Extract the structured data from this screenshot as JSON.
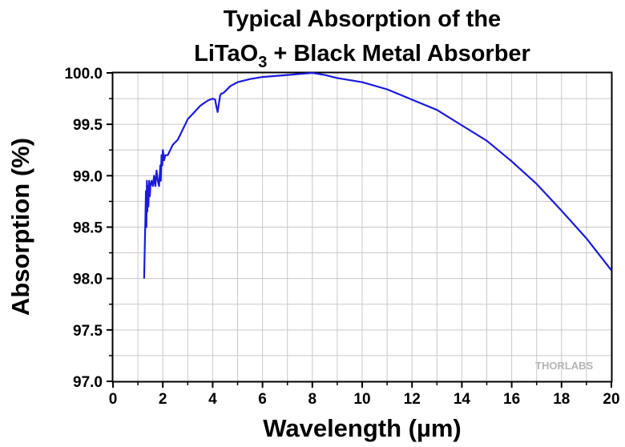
{
  "chart_data": {
    "type": "line",
    "title_line1": "Typical Absorption of the",
    "title_line2_pre": "LiTaO",
    "title_line2_sub": "3",
    "title_line2_post": " + Black Metal Absorber",
    "xlabel": "Wavelength (µm)",
    "ylabel": "Absorption (%)",
    "xlim": [
      0,
      20
    ],
    "ylim": [
      97.0,
      100.0
    ],
    "x_ticks": [
      "0",
      "2",
      "4",
      "6",
      "8",
      "10",
      "12",
      "14",
      "16",
      "18",
      "20"
    ],
    "y_ticks": [
      "97.0",
      "97.5",
      "98.0",
      "98.5",
      "99.0",
      "99.5",
      "100.0"
    ],
    "grid": true,
    "line_color": "#1a1adc",
    "watermark": "THORLABS",
    "series": [
      {
        "x": [
          1.25,
          1.28,
          1.3,
          1.32,
          1.34,
          1.36,
          1.38,
          1.4,
          1.42,
          1.45,
          1.48,
          1.5,
          1.55,
          1.6,
          1.65,
          1.7,
          1.75,
          1.8,
          1.85,
          1.9,
          1.92,
          1.95,
          1.98,
          2.0,
          2.05,
          2.1,
          2.2,
          2.4,
          2.6,
          2.8,
          3.0,
          3.2,
          3.5,
          3.8,
          4.0,
          4.1,
          4.15,
          4.2,
          4.25,
          4.3,
          4.35,
          4.4,
          4.5,
          4.7,
          5.0,
          5.5,
          6.0,
          6.5,
          7.0,
          7.5,
          8.0,
          8.5,
          9.0,
          10.0,
          11.0,
          12.0,
          13.0,
          14.0,
          15.0,
          16.0,
          17.0,
          18.0,
          19.0,
          20.0
        ],
        "y": [
          98.0,
          98.35,
          98.55,
          98.85,
          98.5,
          98.95,
          98.65,
          98.9,
          98.7,
          98.95,
          98.8,
          98.9,
          98.95,
          98.9,
          99.0,
          98.9,
          99.05,
          98.95,
          98.9,
          99.1,
          98.95,
          99.2,
          99.1,
          99.25,
          99.15,
          99.2,
          99.2,
          99.3,
          99.35,
          99.45,
          99.55,
          99.6,
          99.68,
          99.73,
          99.75,
          99.74,
          99.67,
          99.62,
          99.7,
          99.78,
          99.8,
          99.8,
          99.82,
          99.87,
          99.91,
          99.94,
          99.96,
          99.97,
          99.98,
          99.99,
          100.0,
          99.98,
          99.95,
          99.91,
          99.84,
          99.74,
          99.64,
          99.49,
          99.34,
          99.14,
          98.92,
          98.66,
          98.39,
          98.08
        ]
      }
    ]
  }
}
